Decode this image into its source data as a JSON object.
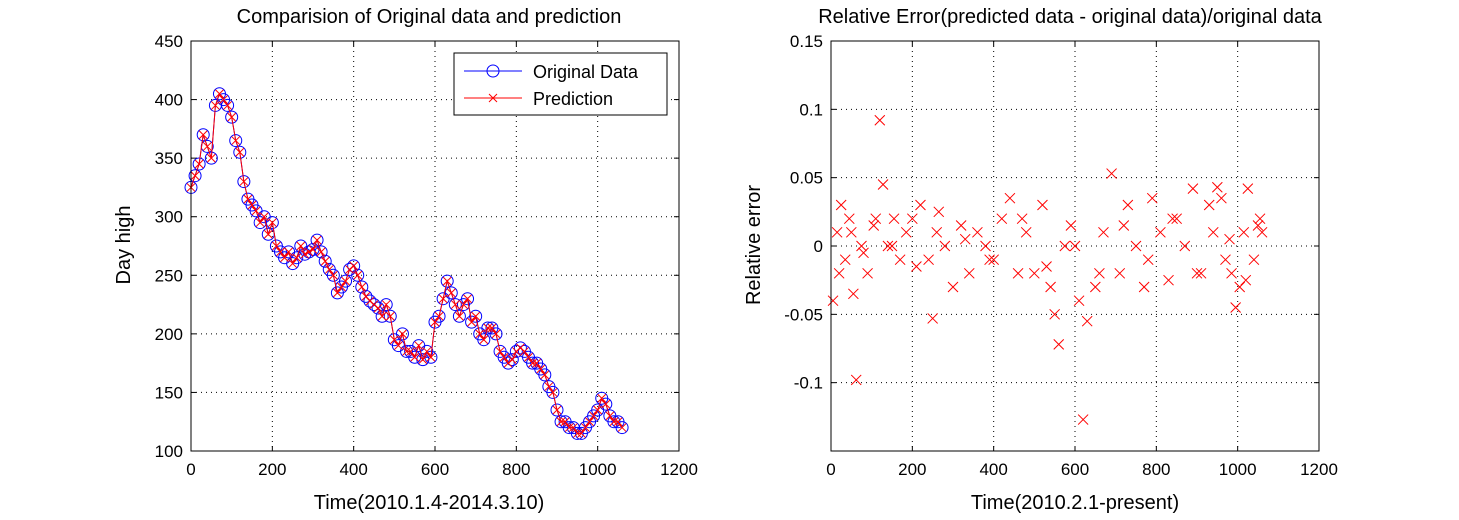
{
  "colors": {
    "original": "#0000ff",
    "prediction": "#ff0000",
    "axes": "#000000",
    "grid": "#000000",
    "background": "#ffffff"
  },
  "chart_data": [
    {
      "type": "line",
      "title": "Comparision of Original data and prediction",
      "xlabel": "Time(2010.1.4-2014.3.10)",
      "ylabel": "Day high",
      "xlim": [
        0,
        1200
      ],
      "ylim": [
        100,
        450
      ],
      "xticks": [
        0,
        200,
        400,
        600,
        800,
        1000,
        1200
      ],
      "yticks": [
        100,
        150,
        200,
        250,
        300,
        350,
        400,
        450
      ],
      "grid": true,
      "legend_position": "top-right",
      "series": [
        {
          "name": "Original Data",
          "marker": "circle",
          "color": "#0000ff"
        },
        {
          "name": "Prediction",
          "marker": "x",
          "color": "#ff0000"
        }
      ],
      "x": [
        0,
        10,
        20,
        30,
        40,
        50,
        60,
        70,
        80,
        90,
        100,
        110,
        120,
        130,
        140,
        150,
        160,
        170,
        180,
        190,
        200,
        210,
        220,
        230,
        240,
        250,
        260,
        270,
        280,
        290,
        300,
        310,
        320,
        330,
        340,
        350,
        360,
        370,
        380,
        390,
        400,
        410,
        420,
        430,
        440,
        450,
        460,
        470,
        480,
        490,
        500,
        510,
        520,
        530,
        540,
        550,
        560,
        570,
        580,
        590,
        600,
        610,
        620,
        630,
        640,
        650,
        660,
        670,
        680,
        690,
        700,
        710,
        720,
        730,
        740,
        750,
        760,
        770,
        780,
        790,
        800,
        810,
        820,
        830,
        840,
        850,
        860,
        870,
        880,
        890,
        900,
        910,
        920,
        930,
        940,
        950,
        960,
        970,
        980,
        990,
        1000,
        1010,
        1020,
        1030,
        1040,
        1050,
        1060
      ],
      "y": [
        325,
        335,
        345,
        370,
        360,
        350,
        395,
        405,
        400,
        395,
        385,
        365,
        355,
        330,
        315,
        310,
        305,
        295,
        300,
        285,
        295,
        275,
        270,
        265,
        270,
        260,
        265,
        275,
        268,
        270,
        272,
        280,
        270,
        262,
        255,
        250,
        235,
        240,
        245,
        255,
        258,
        250,
        240,
        232,
        228,
        225,
        222,
        215,
        225,
        215,
        195,
        190,
        200,
        185,
        185,
        180,
        190,
        178,
        185,
        180,
        210,
        215,
        230,
        245,
        235,
        225,
        215,
        225,
        230,
        210,
        215,
        200,
        195,
        205,
        205,
        200,
        185,
        180,
        175,
        178,
        185,
        188,
        185,
        180,
        175,
        175,
        170,
        165,
        155,
        150,
        135,
        125,
        125,
        120,
        120,
        115,
        115,
        120,
        125,
        130,
        135,
        145,
        140,
        130,
        125,
        125,
        120
      ]
    },
    {
      "type": "scatter",
      "title": "Relative Error(predicted data - original data)/original data",
      "xlabel": "Time(2010.2.1-present)",
      "ylabel": "Relative error",
      "xlim": [
        0,
        1200
      ],
      "ylim": [
        -0.15,
        0.15
      ],
      "xticks": [
        0,
        200,
        400,
        600,
        800,
        1000,
        1200
      ],
      "yticks": [
        -0.1,
        -0.05,
        0,
        0.05,
        0.1,
        0.15
      ],
      "ytick_labels": [
        "-0.1",
        "-0.05",
        "0",
        "0.05",
        "0.1",
        "0.15"
      ],
      "grid": true,
      "series": [
        {
          "marker": "x",
          "color": "#ff0000"
        }
      ],
      "x": [
        5,
        15,
        25,
        35,
        45,
        55,
        62,
        75,
        90,
        105,
        120,
        128,
        140,
        155,
        170,
        185,
        200,
        220,
        240,
        250,
        265,
        280,
        300,
        320,
        340,
        360,
        380,
        400,
        420,
        440,
        460,
        480,
        500,
        520,
        540,
        550,
        560,
        575,
        590,
        610,
        620,
        630,
        650,
        670,
        690,
        710,
        730,
        750,
        770,
        790,
        810,
        830,
        850,
        870,
        890,
        910,
        930,
        950,
        960,
        970,
        985,
        995,
        1005,
        1015,
        1025,
        1040,
        1055,
        1060,
        20,
        50,
        80,
        110,
        150,
        210,
        260,
        330,
        390,
        470,
        530,
        600,
        660,
        720,
        780,
        840,
        900,
        940,
        980,
        1020,
        1050
      ],
      "y": [
        -0.04,
        0.01,
        0.03,
        -0.01,
        0.02,
        -0.035,
        -0.098,
        0.0,
        -0.02,
        0.015,
        0.092,
        0.045,
        0.0,
        0.02,
        -0.01,
        0.01,
        0.02,
        0.03,
        -0.01,
        -0.053,
        0.025,
        0.0,
        -0.03,
        0.015,
        -0.02,
        0.01,
        0.0,
        -0.01,
        0.02,
        0.035,
        -0.02,
        0.01,
        -0.02,
        0.03,
        -0.03,
        -0.05,
        -0.072,
        0.0,
        0.015,
        -0.04,
        -0.127,
        -0.055,
        -0.03,
        0.01,
        0.053,
        -0.02,
        0.03,
        0.0,
        -0.03,
        0.035,
        0.01,
        -0.025,
        0.02,
        0.0,
        0.042,
        -0.02,
        0.03,
        0.043,
        0.035,
        -0.01,
        -0.02,
        -0.045,
        -0.03,
        0.01,
        0.042,
        -0.01,
        0.02,
        0.01,
        -0.02,
        0.01,
        -0.005,
        0.02,
        0.0,
        -0.015,
        0.01,
        0.005,
        -0.01,
        0.02,
        -0.015,
        0.0,
        -0.02,
        0.015,
        -0.01,
        0.02,
        -0.02,
        0.01,
        0.005,
        -0.025,
        0.015
      ]
    }
  ]
}
